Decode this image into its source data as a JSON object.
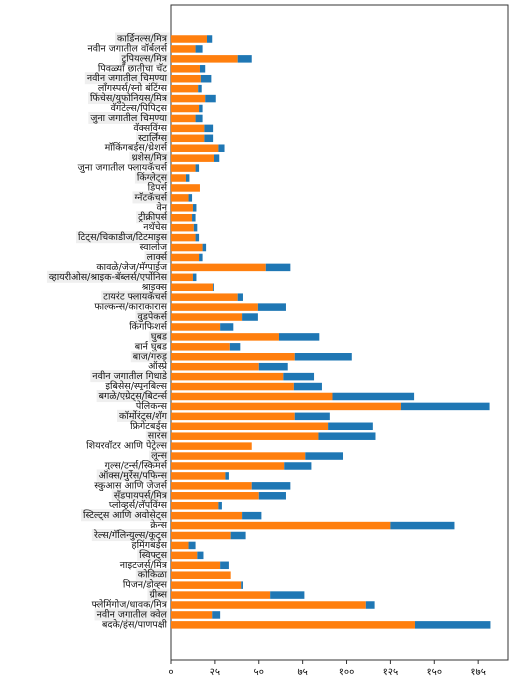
{
  "chart_data": {
    "type": "stacked-bar-horizontal",
    "categories": [
      "कार्डिनल्स/मित्र",
      "नवीन जगातील वॉर्बलर्स",
      "ट्रुपियल्स/मित्र",
      "पिवळ्या छातीचा चॅट",
      "नवीन जगातील चिमण्या",
      "लाँगस्पर्स/स्नो बंटिंग्स",
      "फिंचेस/युफोनियस/मित्र",
      "वॅगटेल्स/पिपिट्स",
      "जुना जगातील चिमण्या",
      "वॅक्सविंग्स",
      "स्टार्लिंग्स",
      "मॉकिंगबर्ड्स/थ्रेशर्स",
      "थ्रशेस/मित्र",
      "जुना जगातील फ्लायकॅचर्स",
      "किंग्लेट्स",
      "डिपर्स",
      "ग्नॅटकॅचर्स",
      "वेन",
      "ट्रीक्रीपर्स",
      "नथॅचेस",
      "टिट्स/चिकाडीज/टिटमाइस",
      "स्वालोज",
      "लार्क्स",
      "कावळे/जेज/मॅग्पाईज",
      "व्हायरीओस/श्राइक-बॅब्लर्स/एर्पोनिस",
      "श्राइक्स",
      "टायरंट फ्लायकॅचर्स",
      "फाल्कन्स/काराकारास",
      "वुडपेकर्स",
      "किंगफिशर्स",
      "घुबड",
      "बार्न घुबड",
      "बाज/गरुड",
      "ऑस्प्रे",
      "नवीन जगातील गिधाडे",
      "इबिसेस/स्पूनबिल्स",
      "बगळे/एग्रेट्स/बिटर्न्स",
      "पेलिकन्स",
      "कॉर्मोरंट्स/शॅग",
      "फ्रिगेटबर्ड्स",
      "सारस",
      "शियरवॉटर आणि पेट्रेल्स",
      "लून्स",
      "गुल्स/टर्न्स/स्किमर्स",
      "ऑक्स/मुर्रेस/पफिन्स",
      "स्कुआस आणि जेजर्स",
      "सँडपायपर्स/मित्र",
      "प्लोव्हर्स/लॅपविंग्स",
      "स्टिल्ट्स आणि अवोसेट्स",
      "क्रेन्स",
      "रेल्स/गॅलिन्युल्स/कूट्स",
      "हमिंगबर्ड्स",
      "स्विफ्ट्स",
      "नाइटजर्स/मित्र",
      "कोकिळा",
      "पिजन/डोव्ह्स",
      "ग्रीब्स",
      "फ्लेमिंगोज/धावक/मित्र",
      "नवीन जगातील क्वेल",
      "बदके/हंस/पाणपक्षी"
    ],
    "series": [
      {
        "color": "#ff7f0e",
        "values": [
          20.5,
          14,
          38,
          16.5,
          17,
          15.5,
          19.5,
          16,
          14,
          19,
          19,
          27,
          24.5,
          14,
          8.5,
          16.5,
          10,
          12.5,
          12,
          13,
          14,
          18,
          16,
          54,
          12.5,
          24,
          38,
          49.5,
          40.5,
          28,
          61.5,
          33.5,
          70.5,
          50,
          64,
          70,
          92,
          131,
          70.5,
          89.5,
          84,
          46,
          76.5,
          64.5,
          31,
          46,
          50,
          27,
          40.5,
          125,
          34,
          10,
          15,
          28,
          34,
          40,
          56.5,
          111,
          23.5,
          139
        ]
      },
      {
        "color": "#1f77b4",
        "values": [
          3,
          4,
          8,
          3,
          6,
          2,
          6,
          2,
          4,
          5,
          5,
          3.5,
          3,
          2,
          2,
          0,
          2,
          2,
          2,
          2,
          2,
          2,
          2,
          14,
          2,
          0.5,
          3,
          16,
          9,
          7.5,
          23,
          6,
          32.5,
          16.5,
          17.5,
          16,
          46.5,
          50.5,
          20,
          25.5,
          32.5,
          0,
          21.5,
          15.5,
          2,
          22,
          15.5,
          2,
          11,
          36.5,
          8.5,
          4,
          3.5,
          5,
          0,
          1,
          19.5,
          5,
          4.5,
          43
        ]
      }
    ],
    "xlim": [
      0,
      192
    ],
    "xticks": [
      {
        "value": 0,
        "label": "०"
      },
      {
        "value": 25,
        "label": "२५"
      },
      {
        "value": 50,
        "label": "५०"
      },
      {
        "value": 75,
        "label": "७५"
      },
      {
        "value": 100,
        "label": "१००"
      },
      {
        "value": 125,
        "label": "१२५"
      },
      {
        "value": 150,
        "label": "१५०"
      },
      {
        "value": 175,
        "label": "१७५"
      }
    ]
  }
}
